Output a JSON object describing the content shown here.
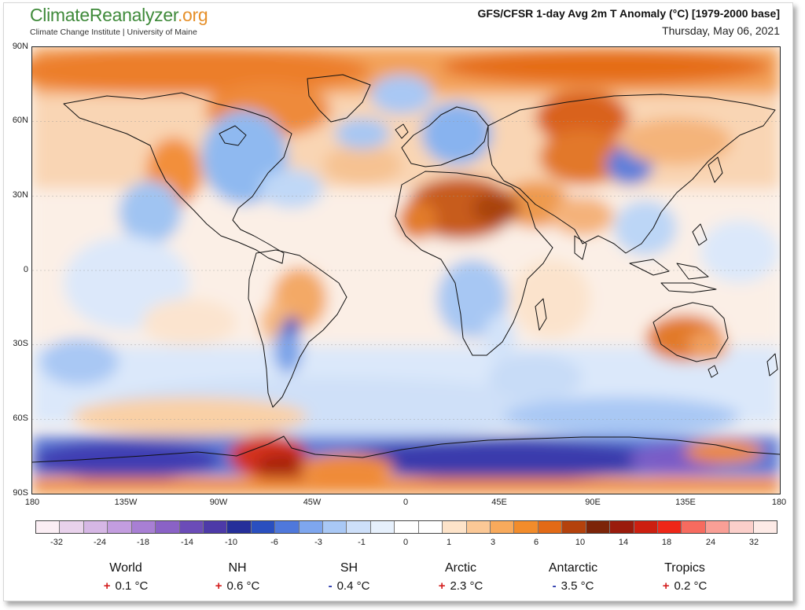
{
  "header": {
    "brand_part1": "Climate",
    "brand_part2": "Reanalyzer",
    "brand_part3": ".org",
    "subtitle": "Climate Change Institute | University of Maine",
    "title": "GFS/CFSR 1-day Avg 2m T Anomaly (°C) [1979-2000 base]",
    "date": "Thursday, May 06, 2021"
  },
  "map": {
    "lat_labels": [
      "90N",
      "60N",
      "30N",
      "0",
      "30S",
      "60S",
      "90S"
    ],
    "lon_labels": [
      "180",
      "135W",
      "90W",
      "45W",
      "0",
      "45E",
      "90E",
      "135E",
      "180"
    ]
  },
  "colorbar": {
    "labels": [
      "-32",
      "-24",
      "-18",
      "-14",
      "-10",
      "-6",
      "-3",
      "-1",
      "0",
      "1",
      "3",
      "6",
      "10",
      "14",
      "18",
      "24",
      "32"
    ],
    "colors": [
      "#fbeef4",
      "#e9d2ec",
      "#d6b7e5",
      "#c39ddf",
      "#a87fd4",
      "#8a62c6",
      "#6b4cb8",
      "#4d3aa8",
      "#252f9a",
      "#2a4fbf",
      "#4f78db",
      "#7ea6ee",
      "#a9c8f5",
      "#cddff9",
      "#e6f0fc",
      "#ffffff",
      "#ffffff",
      "#fde3c9",
      "#fbc896",
      "#f8aa5c",
      "#f28c2b",
      "#e26a16",
      "#b4420c",
      "#7c2408",
      "#9a1b0c",
      "#cc1f10",
      "#ee2718",
      "#f76b5f",
      "#f99f96",
      "#fbcfca",
      "#fdeae6"
    ]
  },
  "stats": [
    {
      "name": "World",
      "sign": "+",
      "value": "0.1 °C",
      "sign_color": "#d42020"
    },
    {
      "name": "NH",
      "sign": "+",
      "value": "0.6 °C",
      "sign_color": "#d42020"
    },
    {
      "name": "SH",
      "sign": "-",
      "value": "0.4 °C",
      "sign_color": "#1f2fa8"
    },
    {
      "name": "Arctic",
      "sign": "+",
      "value": "2.3 °C",
      "sign_color": "#d42020"
    },
    {
      "name": "Antarctic",
      "sign": "-",
      "value": "3.5 °C",
      "sign_color": "#1f2fa8"
    },
    {
      "name": "Tropics",
      "sign": "+",
      "value": "0.2 °C",
      "sign_color": "#d42020"
    }
  ]
}
